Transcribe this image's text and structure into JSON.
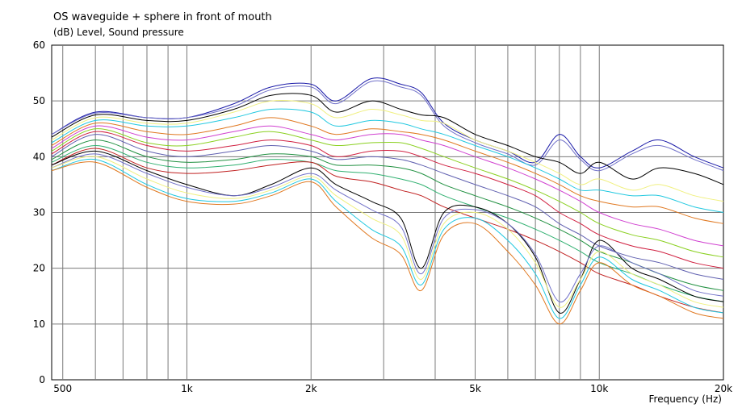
{
  "chart_data": {
    "type": "line",
    "title": "OS waveguide + sphere in front of mouth",
    "ylabel": "(dB)  Level, Sound pressure",
    "xlabel": "Frequency  (Hz)",
    "x_scale": "log",
    "xlim": [
      470,
      20000
    ],
    "ylim": [
      0,
      60
    ],
    "grid": true,
    "x_ticks": [
      {
        "value": 500,
        "label": "500"
      },
      {
        "value": 1000,
        "label": "1k"
      },
      {
        "value": 2000,
        "label": "2k"
      },
      {
        "value": 5000,
        "label": "5k"
      },
      {
        "value": 10000,
        "label": "10k"
      },
      {
        "value": 20000,
        "label": "20k"
      }
    ],
    "y_ticks": [
      0,
      10,
      20,
      30,
      40,
      50,
      60
    ],
    "x": [
      470,
      600,
      800,
      1000,
      1300,
      1600,
      2000,
      2300,
      2800,
      3300,
      3700,
      4200,
      5000,
      6000,
      7000,
      8000,
      9000,
      10000,
      12000,
      14000,
      17000,
      20000
    ],
    "series": [
      {
        "color": "#1a1aa8",
        "values": [
          44,
          48,
          47,
          47,
          49.5,
          52.5,
          53,
          50,
          54,
          53,
          51.5,
          46,
          43,
          41,
          39,
          44,
          40,
          38,
          41,
          43,
          40,
          38
        ]
      },
      {
        "color": "#7070c8",
        "values": [
          44,
          47.8,
          47,
          47,
          49,
          52,
          52.5,
          49.5,
          53.5,
          52.5,
          51,
          45.5,
          42.5,
          40.5,
          38.5,
          43,
          39.5,
          37.5,
          40.5,
          42,
          39.5,
          37.5
        ]
      },
      {
        "color": "#000000",
        "values": [
          43.5,
          47.5,
          46.5,
          46.5,
          48.5,
          51,
          51,
          48,
          50,
          48.5,
          47.5,
          47,
          44,
          42,
          40,
          39,
          37,
          39,
          36,
          38,
          37,
          35
        ]
      },
      {
        "color": "#f0f080",
        "values": [
          43,
          47,
          46,
          46,
          48,
          50,
          49.5,
          47,
          48.5,
          47.5,
          46.5,
          46,
          43,
          41,
          39,
          37,
          35,
          36,
          34,
          35,
          33,
          32
        ]
      },
      {
        "color": "#20c8e0",
        "values": [
          42.5,
          46.5,
          45.5,
          45.5,
          47,
          48.5,
          48,
          45.5,
          46.5,
          46,
          45,
          44,
          42,
          40,
          38,
          36,
          34,
          34,
          33,
          33,
          31,
          30
        ]
      },
      {
        "color": "#e07820",
        "values": [
          42,
          46,
          44.5,
          44,
          45.5,
          47,
          45.5,
          44,
          45,
          44.5,
          44,
          43,
          41,
          39,
          37,
          35,
          33,
          32,
          31,
          31,
          29,
          28
        ]
      },
      {
        "color": "#d040d0",
        "values": [
          41.5,
          45.5,
          43.5,
          43,
          44.5,
          45.5,
          44,
          43,
          44,
          44,
          43,
          42,
          40,
          38,
          36,
          34,
          32,
          30,
          28,
          27,
          25,
          24
        ]
      },
      {
        "color": "#8ad020",
        "values": [
          41,
          45,
          42.5,
          42,
          43.5,
          44.5,
          43,
          42,
          42.5,
          42.5,
          41.5,
          40,
          38,
          36,
          34,
          32,
          30,
          28,
          26,
          25,
          23,
          22
        ]
      },
      {
        "color": "#d02040",
        "values": [
          40.5,
          44.5,
          42,
          41,
          42,
          43,
          42,
          40,
          41,
          41,
          40,
          38.5,
          37,
          35,
          33,
          30,
          28,
          26,
          24,
          23,
          21,
          20
        ]
      },
      {
        "color": "#6060b0",
        "values": [
          40,
          44,
          41,
          40,
          41,
          42,
          41,
          39.5,
          40,
          39.5,
          38.5,
          37,
          35,
          33,
          31,
          28,
          26,
          24,
          22,
          21,
          19,
          18
        ]
      },
      {
        "color": "#209040",
        "values": [
          39.5,
          43,
          40,
          39,
          39.5,
          40.5,
          40,
          38.5,
          38.5,
          38,
          37,
          35,
          33,
          31,
          29,
          27,
          25,
          23,
          21,
          19,
          17,
          16
        ]
      },
      {
        "color": "#30b070",
        "values": [
          39,
          42,
          39,
          38,
          38.5,
          39.5,
          39,
          37.5,
          37,
          36,
          35,
          33,
          31,
          29,
          27,
          25,
          23,
          21,
          19,
          17,
          15,
          14
        ]
      },
      {
        "color": "#c02020",
        "values": [
          38.5,
          41.5,
          38,
          37,
          37.5,
          38.5,
          39,
          36.5,
          35.5,
          34,
          33,
          31,
          29,
          27,
          25,
          23,
          21,
          19,
          17,
          15,
          13,
          12
        ]
      },
      {
        "color": "#000000",
        "values": [
          38.5,
          41,
          37.5,
          35,
          33,
          35,
          38,
          35,
          32,
          29,
          20,
          30,
          31,
          28,
          22,
          12,
          18,
          25,
          20,
          18,
          15,
          14
        ]
      },
      {
        "color": "#7070c8",
        "values": [
          38,
          40.5,
          37,
          34.5,
          33,
          34.5,
          37,
          34,
          30.5,
          27.5,
          19,
          29,
          30.5,
          28,
          22.5,
          14,
          19,
          24,
          21,
          19,
          16,
          15
        ]
      },
      {
        "color": "#f0f080",
        "values": [
          38,
          40,
          36,
          33.5,
          32.5,
          34,
          36.5,
          33,
          29,
          26,
          18,
          28,
          30,
          27,
          21,
          13,
          18,
          23,
          19,
          17,
          14,
          13
        ]
      },
      {
        "color": "#20c8e0",
        "values": [
          37.5,
          39.5,
          35,
          32.5,
          32,
          33.5,
          36,
          32,
          27,
          24,
          17,
          27,
          29,
          25,
          19,
          11,
          17,
          22,
          18,
          16,
          13,
          12
        ]
      },
      {
        "color": "#e07820",
        "values": [
          37.5,
          39,
          34.5,
          32,
          31.5,
          33,
          35.5,
          31,
          25.5,
          22.5,
          16,
          26,
          28,
          23,
          17,
          10,
          16,
          21,
          17,
          15,
          12,
          11
        ]
      }
    ]
  }
}
